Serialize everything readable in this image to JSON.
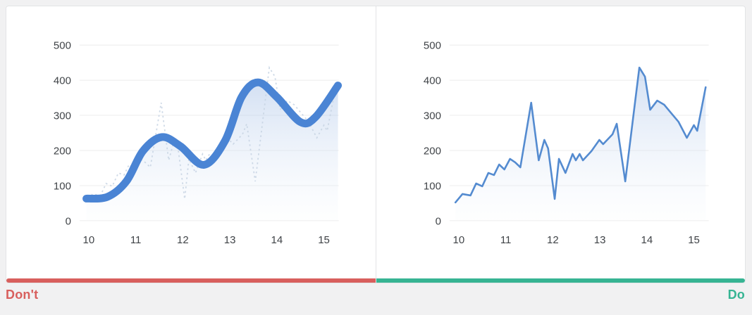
{
  "labels": {
    "dont": "Don't",
    "do": "Do"
  },
  "colors": {
    "page_bg": "#f1f1f2",
    "card_bg": "#ffffff",
    "card_border": "#e3e4e6",
    "grid": "#ececec",
    "axis_text": "#3f4347",
    "smooth_line_blue": "#4a84d4",
    "actual_line_blue": "#548bd0",
    "dashed_actual": "#c7d3e3",
    "area_fill_top": "rgba(167,193,231,0.50)",
    "area_fill_bottom": "rgba(247,250,253,0.18)",
    "dont_accent": "#d85f5d",
    "do_accent": "#36b493"
  },
  "chart_data": [
    {
      "type": "area",
      "panel": "dont",
      "title": "",
      "xlabel": "",
      "ylabel": "",
      "x_ticks": [
        10,
        11,
        12,
        13,
        14,
        15
      ],
      "y_ticks": [
        0,
        100,
        200,
        300,
        400,
        500
      ],
      "xlim": [
        9.9,
        15.32
      ],
      "ylim": [
        0,
        500
      ],
      "grid": true,
      "legend": "none",
      "series": [
        {
          "name": "over-smoothed trend line (thick)",
          "style": "smooth-thick",
          "points": [
            [
              9.95,
              63
            ],
            [
              10.4,
              68
            ],
            [
              10.8,
              112
            ],
            [
              11.15,
              198
            ],
            [
              11.55,
              238
            ],
            [
              11.95,
              212
            ],
            [
              12.45,
              159
            ],
            [
              12.9,
              228
            ],
            [
              13.25,
              352
            ],
            [
              13.6,
              394
            ],
            [
              14.0,
              352
            ],
            [
              14.5,
              281
            ],
            [
              14.82,
              295
            ],
            [
              15.3,
              385
            ]
          ]
        },
        {
          "name": "actual data (faint dashed)",
          "style": "dashed-faint",
          "points": [
            [
              9.93,
              52
            ],
            [
              10.08,
              76
            ],
            [
              10.25,
              72
            ],
            [
              10.37,
              106
            ],
            [
              10.5,
              98
            ],
            [
              10.63,
              136
            ],
            [
              10.75,
              130
            ],
            [
              10.86,
              160
            ],
            [
              10.97,
              146
            ],
            [
              11.09,
              176
            ],
            [
              11.2,
              166
            ],
            [
              11.31,
              152
            ],
            [
              11.54,
              336
            ],
            [
              11.7,
              172
            ],
            [
              11.82,
              230
            ],
            [
              11.9,
              206
            ],
            [
              12.04,
              62
            ],
            [
              12.13,
              176
            ],
            [
              12.27,
              136
            ],
            [
              12.42,
              190
            ],
            [
              12.49,
              172
            ],
            [
              12.57,
              190
            ],
            [
              12.64,
              172
            ],
            [
              12.82,
              198
            ],
            [
              12.99,
              230
            ],
            [
              13.07,
              218
            ],
            [
              13.27,
              246
            ],
            [
              13.36,
              276
            ],
            [
              13.54,
              112
            ],
            [
              13.84,
              436
            ],
            [
              13.96,
              410
            ],
            [
              14.07,
              316
            ],
            [
              14.22,
              342
            ],
            [
              14.37,
              330
            ],
            [
              14.52,
              306
            ],
            [
              14.67,
              282
            ],
            [
              14.85,
              236
            ],
            [
              15.0,
              272
            ],
            [
              15.07,
              256
            ],
            [
              15.25,
              380
            ]
          ]
        }
      ]
    },
    {
      "type": "area",
      "panel": "do",
      "title": "",
      "xlabel": "",
      "ylabel": "",
      "x_ticks": [
        10,
        11,
        12,
        13,
        14,
        15
      ],
      "y_ticks": [
        0,
        100,
        200,
        300,
        400,
        500
      ],
      "xlim": [
        9.9,
        15.32
      ],
      "ylim": [
        0,
        500
      ],
      "grid": true,
      "legend": "none",
      "series": [
        {
          "name": "actual data (solid)",
          "style": "jagged-solid",
          "points": [
            [
              9.93,
              52
            ],
            [
              10.08,
              76
            ],
            [
              10.25,
              72
            ],
            [
              10.37,
              106
            ],
            [
              10.5,
              98
            ],
            [
              10.63,
              136
            ],
            [
              10.75,
              130
            ],
            [
              10.86,
              160
            ],
            [
              10.97,
              146
            ],
            [
              11.09,
              176
            ],
            [
              11.2,
              166
            ],
            [
              11.31,
              152
            ],
            [
              11.54,
              336
            ],
            [
              11.7,
              172
            ],
            [
              11.82,
              230
            ],
            [
              11.9,
              206
            ],
            [
              12.04,
              62
            ],
            [
              12.13,
              176
            ],
            [
              12.27,
              136
            ],
            [
              12.42,
              190
            ],
            [
              12.49,
              172
            ],
            [
              12.57,
              190
            ],
            [
              12.64,
              172
            ],
            [
              12.82,
              198
            ],
            [
              12.99,
              230
            ],
            [
              13.07,
              218
            ],
            [
              13.27,
              246
            ],
            [
              13.36,
              276
            ],
            [
              13.54,
              112
            ],
            [
              13.84,
              436
            ],
            [
              13.96,
              410
            ],
            [
              14.07,
              316
            ],
            [
              14.22,
              342
            ],
            [
              14.37,
              330
            ],
            [
              14.52,
              306
            ],
            [
              14.67,
              282
            ],
            [
              14.85,
              236
            ],
            [
              15.0,
              272
            ],
            [
              15.07,
              256
            ],
            [
              15.25,
              380
            ]
          ]
        }
      ]
    }
  ]
}
